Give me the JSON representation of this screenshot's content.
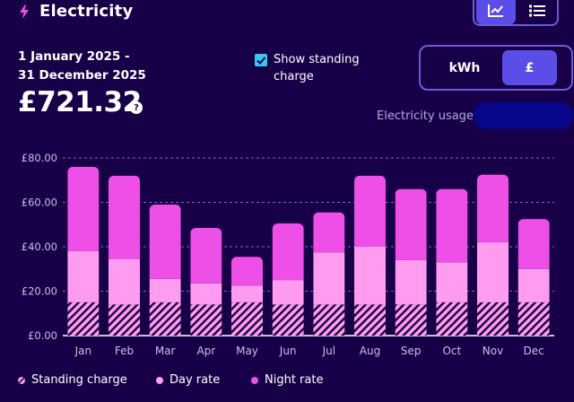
{
  "header": {
    "title": "Electricity",
    "bolt_icon": "lightning-bolt-icon",
    "view_options": [
      {
        "name": "chart-view",
        "icon": "line-chart-icon",
        "active": true
      },
      {
        "name": "list-view",
        "icon": "list-icon",
        "active": false
      }
    ]
  },
  "summary": {
    "date_range_line1": "1 January 2025 -",
    "date_range_line2": "31 December 2025",
    "total": "£721.32",
    "help_symbol": "?"
  },
  "controls": {
    "show_standing_charge_label": "Show standing charge",
    "show_standing_charge_checked": true,
    "unit_options": [
      "kWh",
      "£"
    ],
    "selected_unit": "£"
  },
  "usage_label": "Electricity usage",
  "colors": {
    "background": "#180048",
    "standing_charge": "#ff9ce8",
    "day_rate": "#ff9cf0",
    "night_rate": "#ee4fe6",
    "accent": "#5b4ee8",
    "checkbox": "#38c8f0"
  },
  "chart_data": {
    "type": "bar",
    "stacked": true,
    "categories": [
      "Jan",
      "Feb",
      "Mar",
      "Apr",
      "May",
      "Jun",
      "Jul",
      "Aug",
      "Sep",
      "Oct",
      "Nov",
      "Dec"
    ],
    "series": [
      {
        "name": "Standing charge",
        "color": "#ff9ce8",
        "pattern": "hatched",
        "values": [
          15,
          14,
          15,
          14,
          15,
          14,
          14,
          14,
          14,
          15,
          15,
          15
        ]
      },
      {
        "name": "Day rate",
        "color": "#ff9cf0",
        "values": [
          23,
          20.5,
          10.5,
          9.5,
          7.5,
          11,
          23.5,
          26,
          20,
          18,
          27,
          15
        ]
      },
      {
        "name": "Night rate",
        "color": "#ee4fe6",
        "values": [
          38,
          37.5,
          33.5,
          25,
          13,
          25.5,
          18,
          32,
          32,
          33,
          30.5,
          22.5
        ]
      }
    ],
    "ytick_labels": [
      "£0.00",
      "£20.00",
      "£40.00",
      "£60.00",
      "£80.00"
    ],
    "ylim": [
      0,
      80
    ],
    "grid": true
  }
}
